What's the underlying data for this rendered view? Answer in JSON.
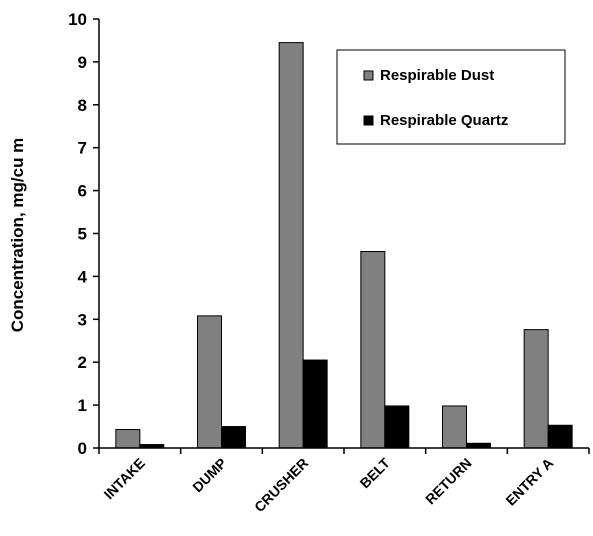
{
  "chart_data": {
    "type": "bar",
    "title": "",
    "xlabel": "",
    "ylabel": "Concentration, mg/cu m",
    "ylim": [
      0,
      10
    ],
    "yticks": [
      0,
      1,
      2,
      3,
      4,
      5,
      6,
      7,
      8,
      9,
      10
    ],
    "grid": false,
    "legend_position": "top-right",
    "categories": [
      "INTAKE",
      "DUMP",
      "CRUSHER",
      "BELT",
      "RETURN",
      "ENTRY A"
    ],
    "series": [
      {
        "name": "Respirable Dust",
        "color": "#808080",
        "values": [
          0.43,
          3.08,
          9.45,
          4.58,
          0.98,
          2.76
        ]
      },
      {
        "name": "Respirable Quartz",
        "color": "#000000",
        "values": [
          0.08,
          0.5,
          2.05,
          0.98,
          0.11,
          0.53
        ]
      }
    ]
  }
}
